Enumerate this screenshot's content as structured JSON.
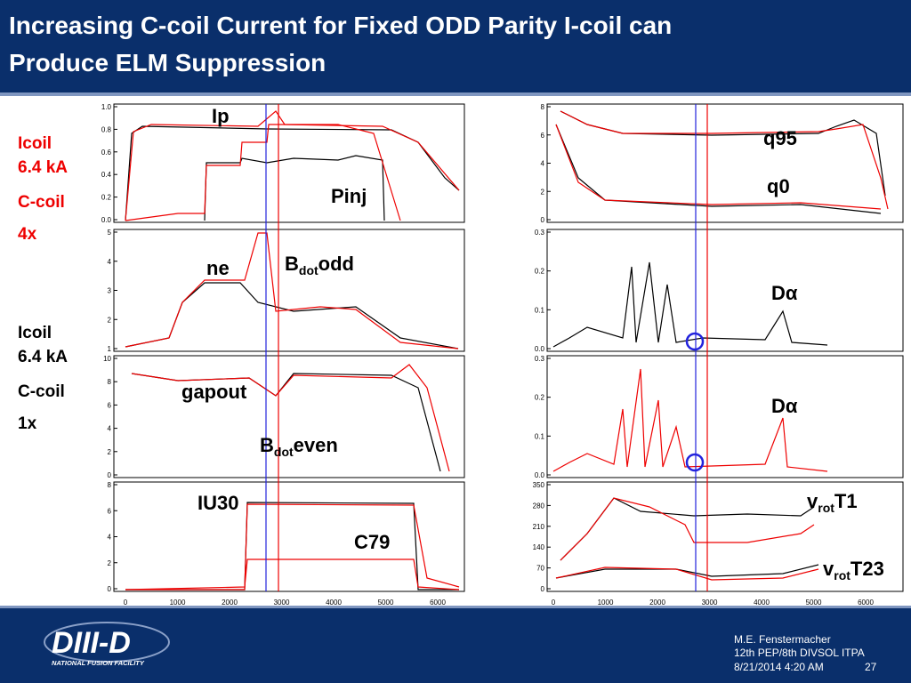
{
  "header": {
    "title_lines": [
      "Increasing C-coil Current for Fixed ODD Parity I-coil can",
      "Produce ELM Suppression"
    ]
  },
  "side_labels": {
    "top": [
      "Icoil",
      "6.4 kA",
      "C-coil",
      "4x"
    ],
    "bottom": [
      "Icoil",
      "6.4 kA",
      "C-coil",
      "1x"
    ]
  },
  "left_panels": [
    {
      "yticks": [
        "1.0",
        "0.8",
        "0.6",
        "0.4",
        "0.2",
        "0.0"
      ]
    },
    {
      "yticks": [
        "5",
        "4",
        "3",
        "2",
        "1"
      ]
    },
    {
      "yticks": [
        "10",
        "8",
        "6",
        "4",
        "2",
        "0"
      ]
    },
    {
      "yticks": [
        "8",
        "6",
        "4",
        "2",
        "0"
      ]
    }
  ],
  "right_panels": [
    {
      "yticks": [
        "8",
        "6",
        "4",
        "2",
        "0"
      ]
    },
    {
      "yticks": [
        "0.3",
        "0.2",
        "0.1",
        "0.0"
      ]
    },
    {
      "yticks": [
        "0.3",
        "0.2",
        "0.1",
        "0.0"
      ]
    },
    {
      "yticks": [
        "350",
        "280",
        "210",
        "140",
        "70",
        "0"
      ]
    }
  ],
  "left_xticks": [
    "0",
    "1000",
    "2000",
    "3000",
    "4000",
    "5000",
    "6000"
  ],
  "right_xticks": [
    "0",
    "1000",
    "2000",
    "3000",
    "4000",
    "5000",
    "6000"
  ],
  "annotations": [
    {
      "parts": [
        "Ip"
      ]
    },
    {
      "parts": [
        "Pinj"
      ]
    },
    {
      "parts": [
        "ne"
      ]
    },
    {
      "parts": [
        "B",
        "dot",
        "odd"
      ]
    },
    {
      "parts": [
        "gapout"
      ]
    },
    {
      "parts": [
        "B",
        "dot",
        "even"
      ]
    },
    {
      "parts": [
        "IU30"
      ]
    },
    {
      "parts": [
        "C79"
      ]
    },
    {
      "parts": [
        "q95"
      ]
    },
    {
      "parts": [
        "q0"
      ]
    },
    {
      "parts": [
        "Dα"
      ]
    },
    {
      "parts": [
        "Dα"
      ]
    },
    {
      "parts": [
        "v",
        "rot",
        "T1"
      ]
    },
    {
      "parts": [
        "v",
        "rot",
        "T23"
      ]
    }
  ],
  "footer": {
    "logo": "DIII-D",
    "logo_sub": "NATIONAL FUSION FACILITY",
    "author": "M.E. Fenstermacher",
    "meeting": "12th PEP/8th DIVSOL ITPA",
    "date": "8/21/2014 4:20 AM",
    "page": "27"
  }
}
